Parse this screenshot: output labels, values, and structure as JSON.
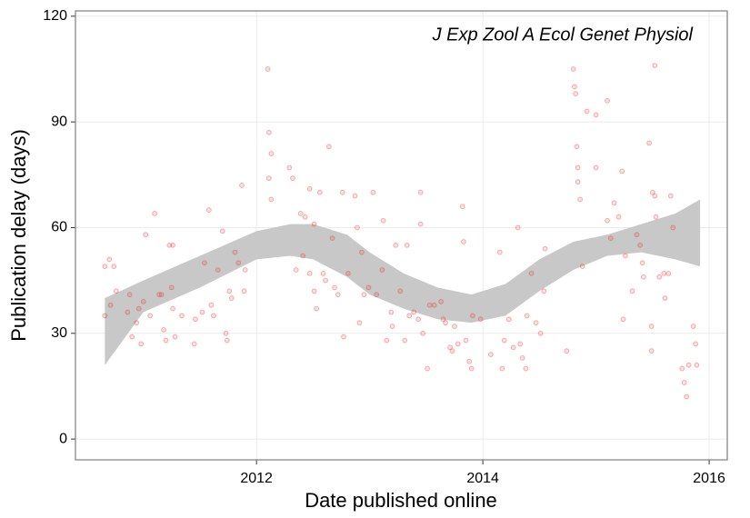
{
  "chart_data": {
    "type": "scatter",
    "annotation": "J Exp Zool A Ecol Genet Physiol",
    "x_label": "Date published online",
    "y_label": "Publication delay (days)",
    "color": "#e8282b",
    "band_color": "#c8c8c8",
    "grid": true,
    "xlim": [
      2010.4,
      2016.16
    ],
    "xticks": [
      2012,
      2014,
      2016
    ],
    "ylim": [
      -5.9,
      121.5
    ],
    "yticks": [
      0,
      30,
      60,
      90,
      120
    ],
    "x": [
      2010.66,
      2010.66,
      2010.7,
      2010.74,
      2010.71,
      2010.76,
      2010.86,
      2010.88,
      2010.9,
      2010.94,
      2010.96,
      2010.98,
      2011.0,
      2011.02,
      2011.06,
      2011.1,
      2011.14,
      2011.16,
      2011.18,
      2011.2,
      2011.23,
      2011.26,
      2011.25,
      2011.26,
      2011.28,
      2011.34,
      2011.45,
      2011.46,
      2011.52,
      2011.54,
      2011.58,
      2011.6,
      2011.62,
      2011.66,
      2011.7,
      2011.73,
      2011.74,
      2011.76,
      2011.78,
      2011.81,
      2011.84,
      2011.87,
      2011.89,
      2011.9,
      2012.1,
      2012.11,
      2012.13,
      2012.11,
      2012.13,
      2012.29,
      2012.32,
      2012.39,
      2012.43,
      2012.47,
      2012.51,
      2012.35,
      2012.41,
      2012.47,
      2012.51,
      2012.53,
      2012.56,
      2012.59,
      2012.61,
      2012.64,
      2012.67,
      2012.69,
      2012.72,
      2012.76,
      2012.77,
      2012.81,
      2012.87,
      2012.89,
      2012.91,
      2012.93,
      2012.95,
      2012.99,
      2013.03,
      2013.06,
      2013.11,
      2013.12,
      2013.15,
      2013.19,
      2013.2,
      2013.23,
      2013.27,
      2013.31,
      2013.33,
      2013.35,
      2013.39,
      2013.43,
      2013.45,
      2013.45,
      2013.47,
      2013.51,
      2013.53,
      2013.57,
      2013.63,
      2013.65,
      2013.67,
      2013.71,
      2013.73,
      2013.75,
      2013.78,
      2013.82,
      2013.83,
      2013.85,
      2013.88,
      2013.9,
      2013.91,
      2013.98,
      2014.07,
      2014.15,
      2014.17,
      2014.19,
      2014.23,
      2014.27,
      2014.31,
      2014.33,
      2014.35,
      2014.38,
      2014.39,
      2014.43,
      2014.47,
      2014.51,
      2014.54,
      2014.55,
      2014.74,
      2014.8,
      2014.81,
      2014.82,
      2014.83,
      2014.84,
      2014.84,
      2014.86,
      2014.88,
      2014.92,
      2015.0,
      2015.0,
      2015.1,
      2015.1,
      2015.13,
      2015.16,
      2015.2,
      2015.23,
      2015.24,
      2015.26,
      2015.32,
      2015.36,
      2015.39,
      2015.41,
      2015.42,
      2015.47,
      2015.49,
      2015.49,
      2015.5,
      2015.52,
      2015.53,
      2015.56,
      2015.6,
      2015.61,
      2015.64,
      2015.66,
      2015.68,
      2015.76,
      2015.78,
      2015.8,
      2015.82,
      2015.86,
      2015.88,
      2015.89,
      2015.52
    ],
    "values": [
      35,
      49,
      51,
      49,
      38,
      42,
      36,
      41,
      29,
      33,
      37,
      27,
      39,
      58,
      35,
      64,
      41,
      41,
      31,
      28,
      55,
      55,
      43,
      37,
      29,
      35,
      27,
      34,
      36,
      50,
      65,
      38,
      35,
      48,
      59,
      30,
      28,
      42,
      40,
      53,
      50,
      72,
      42,
      48,
      105,
      87,
      81,
      74,
      68,
      77,
      74,
      64,
      63,
      71,
      61,
      48,
      52,
      47,
      42,
      37,
      70,
      47,
      45,
      83,
      57,
      43,
      41,
      70,
      29,
      47,
      69,
      60,
      33,
      53,
      41,
      43,
      70,
      41,
      48,
      62,
      28,
      36,
      32,
      55,
      42,
      28,
      55,
      35,
      36,
      34,
      70,
      61,
      30,
      20,
      38,
      38,
      39,
      34,
      33,
      26,
      25,
      32,
      27,
      66,
      56,
      28,
      22,
      20,
      35,
      34,
      24,
      53,
      20,
      28,
      34,
      26,
      60,
      27,
      23,
      20,
      35,
      47,
      33,
      30,
      42,
      54,
      25,
      105,
      100,
      98,
      83,
      77,
      73,
      68,
      49,
      93,
      92,
      77,
      96,
      62,
      57,
      67,
      63,
      76,
      34,
      52,
      42,
      58,
      55,
      50,
      46,
      84,
      32,
      25,
      70,
      69,
      63,
      46,
      47,
      40,
      47,
      69,
      60,
      20,
      16,
      12,
      21,
      32,
      27,
      21,
      106
    ],
    "band": {
      "x": [
        2010.66,
        2011.0,
        2011.5,
        2012.0,
        2012.3,
        2012.5,
        2012.8,
        2013.0,
        2013.3,
        2013.6,
        2013.9,
        2014.2,
        2014.5,
        2014.8,
        2015.1,
        2015.4,
        2015.7,
        2015.92
      ],
      "lower": [
        21,
        36,
        43,
        51,
        52,
        51,
        46,
        41,
        37,
        34,
        33,
        35,
        42,
        48,
        52,
        53,
        51,
        49
      ],
      "upper": [
        40,
        45,
        52,
        59,
        61,
        61,
        58,
        53,
        47,
        43,
        41,
        44,
        51,
        56,
        58,
        61,
        64,
        68
      ]
    }
  }
}
